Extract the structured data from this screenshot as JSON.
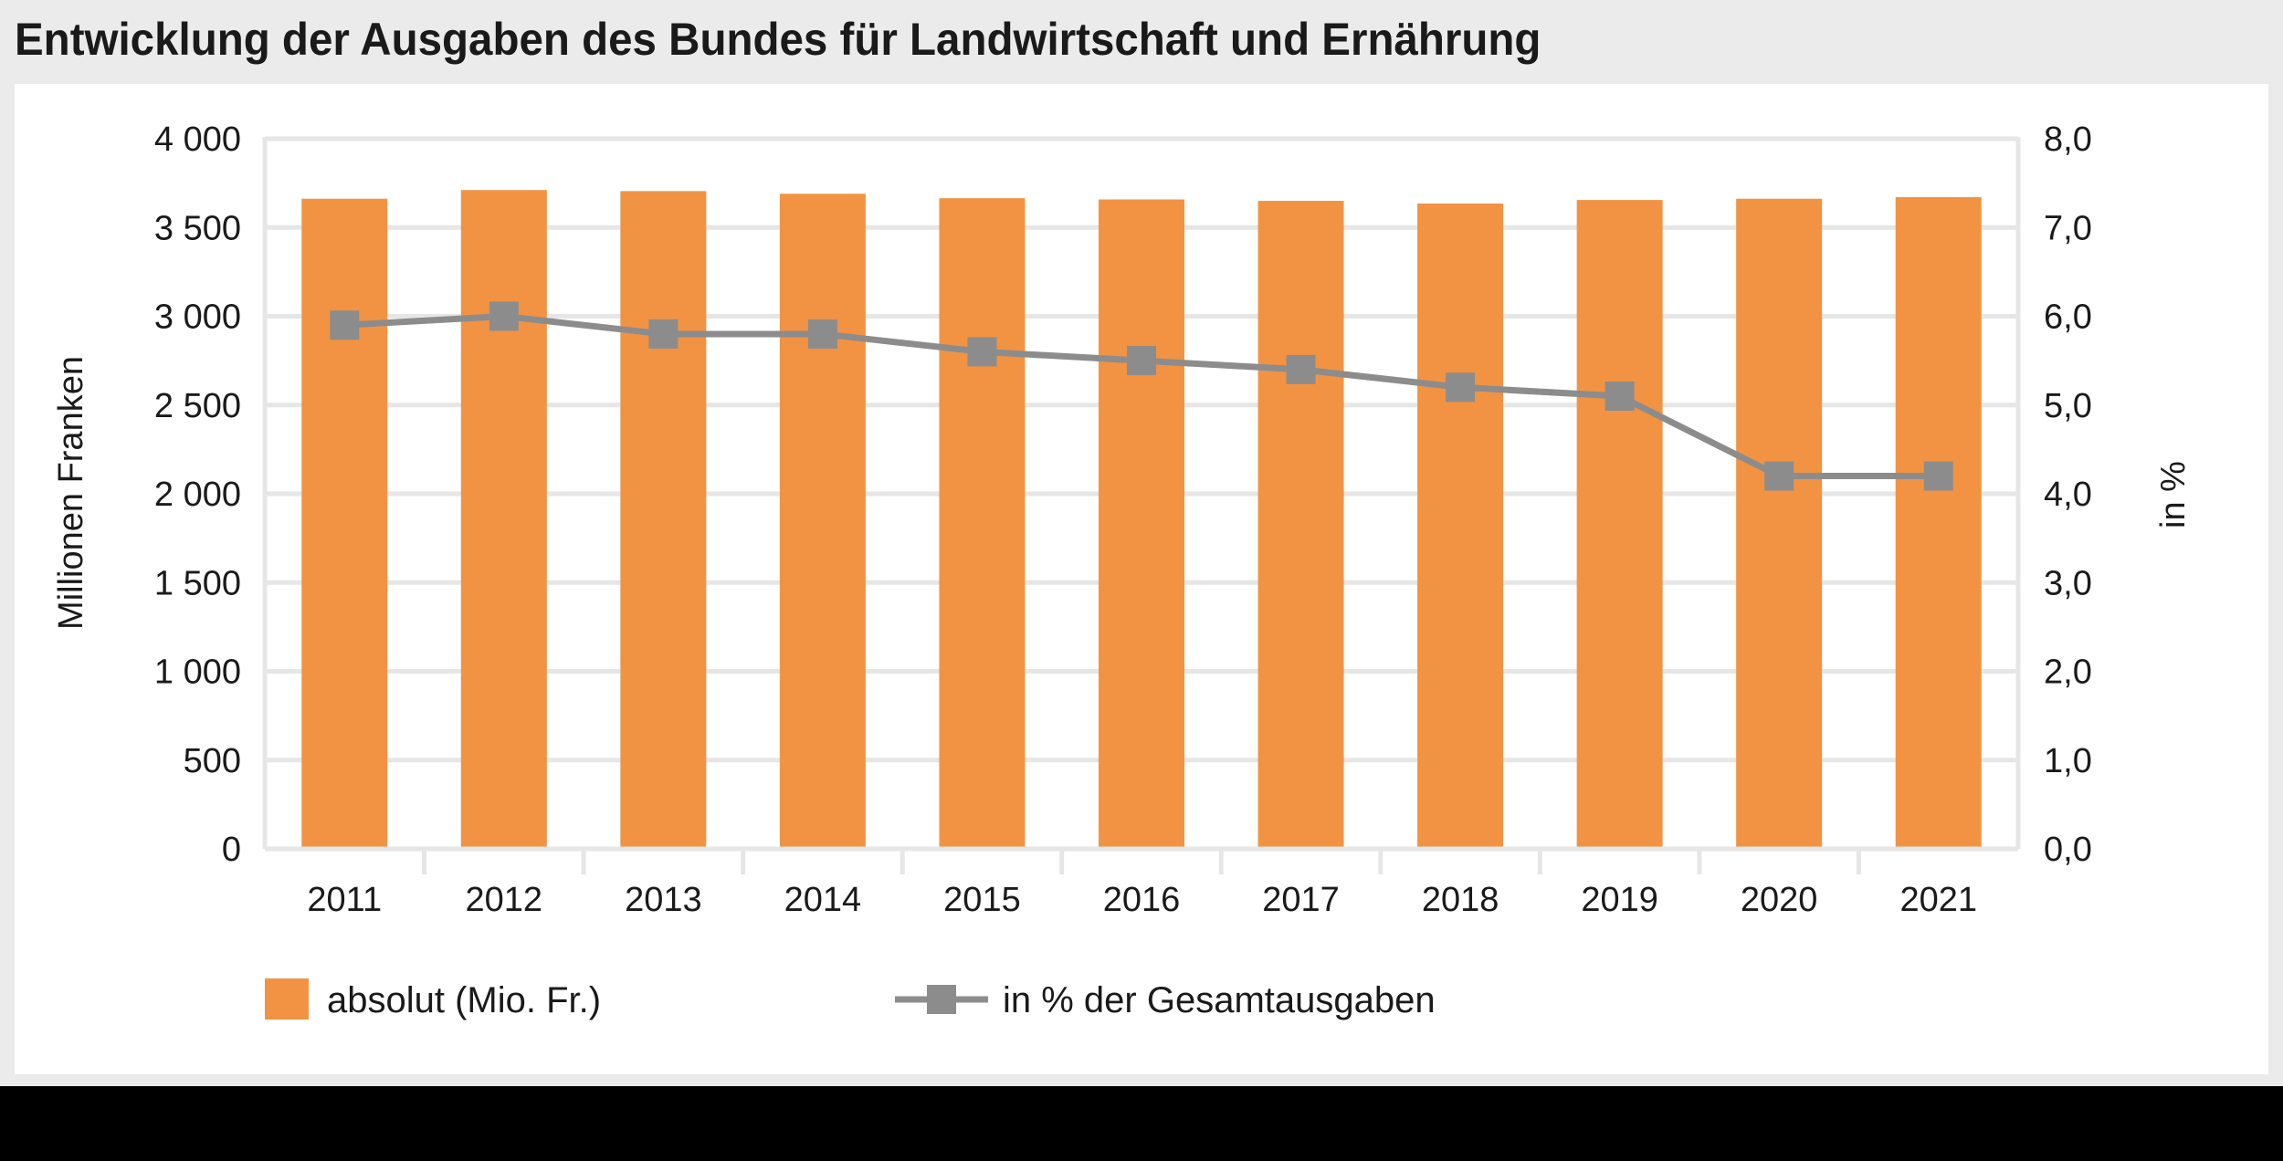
{
  "title": "Entwicklung der Ausgaben des Bundes für Landwirtschaft und Ernährung",
  "colors": {
    "bar": "#f29343",
    "line": "#8c8c8c",
    "grid": "#e6e6e6",
    "frame": "#ebebeb"
  },
  "chart_data": {
    "type": "bar",
    "categories": [
      "2011",
      "2012",
      "2013",
      "2014",
      "2015",
      "2016",
      "2017",
      "2018",
      "2019",
      "2020",
      "2021"
    ],
    "series": [
      {
        "name": "absolut (Mio. Fr.)",
        "type": "bar",
        "axis": "left",
        "values": [
          3662,
          3711,
          3705,
          3690,
          3665,
          3658,
          3650,
          3635,
          3655,
          3662,
          3671
        ]
      },
      {
        "name": "in % der Gesamtausgaben",
        "type": "line",
        "axis": "right",
        "values": [
          5.9,
          6.0,
          5.8,
          5.8,
          5.6,
          5.5,
          5.4,
          5.2,
          5.1,
          4.2,
          4.2
        ]
      }
    ],
    "ylabel": "Millionen Franken",
    "ylabel_right": "in %",
    "ylim": [
      0,
      4000
    ],
    "ylim_right": [
      0,
      8
    ],
    "yticks": [
      0,
      500,
      1000,
      1500,
      2000,
      2500,
      3000,
      3500,
      4000
    ],
    "ytick_labels": [
      "0",
      "500",
      "1 000",
      "1 500",
      "2 000",
      "2 500",
      "3 000",
      "3 500",
      "4 000"
    ],
    "yticks_right": [
      0,
      1,
      2,
      3,
      4,
      5,
      6,
      7,
      8
    ],
    "ytick_labels_right": [
      "0,0",
      "1,0",
      "2,0",
      "3,0",
      "4,0",
      "5,0",
      "6,0",
      "7,0",
      "8,0"
    ],
    "grid": true,
    "legend": "bottom-left"
  }
}
